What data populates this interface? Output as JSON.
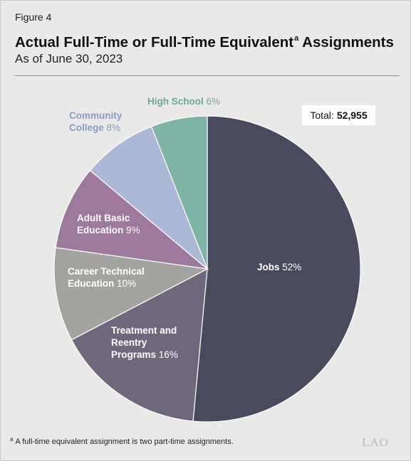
{
  "figure_label": "Figure 4",
  "title": "Actual Full-Time or Full-Time Equivalent",
  "title_superscript": "a",
  "title_end": "Assignments",
  "subtitle": "As of June 30, 2023",
  "total": {
    "label": "Total:",
    "value": "52,955"
  },
  "footnote": {
    "marker": "a",
    "text": "A full-time equivalent assignment is two part-time assignments."
  },
  "logo": "LAO",
  "colors": {
    "background": "#e9eae8",
    "jobs": "#4a4a5e",
    "treatment": "#6f687c",
    "career": "#a3a4a0",
    "adult": "#9d7a9d",
    "community": "#abb9d6",
    "high_school": "#7fb5a7",
    "community_text": "#8a9dc4",
    "high_school_text": "#6fa797"
  },
  "labels": {
    "jobs": {
      "name": "Jobs",
      "pct": "52%"
    },
    "treatment": {
      "l1": "Treatment and",
      "l2": "Reentry",
      "l3": "Programs",
      "pct": "16%"
    },
    "career": {
      "l1": "Career Technical",
      "l2": "Education",
      "pct": "10%"
    },
    "adult": {
      "l1": "Adult Basic",
      "l2": "Education",
      "pct": "9%"
    },
    "community": {
      "l1": "Community",
      "l2": "College",
      "pct": "8%"
    },
    "high_school": {
      "name": "High School",
      "pct": "6%"
    }
  },
  "chart_data": {
    "type": "pie",
    "total": 52955,
    "slices": [
      {
        "key": "jobs",
        "label": "Jobs",
        "value": 52
      },
      {
        "key": "treatment",
        "label": "Treatment and Reentry Programs",
        "value": 16
      },
      {
        "key": "career",
        "label": "Career Technical Education",
        "value": 10
      },
      {
        "key": "adult",
        "label": "Adult Basic Education",
        "value": 9
      },
      {
        "key": "community",
        "label": "Community College",
        "value": 8
      },
      {
        "key": "high_school",
        "label": "High School",
        "value": 6
      }
    ]
  }
}
